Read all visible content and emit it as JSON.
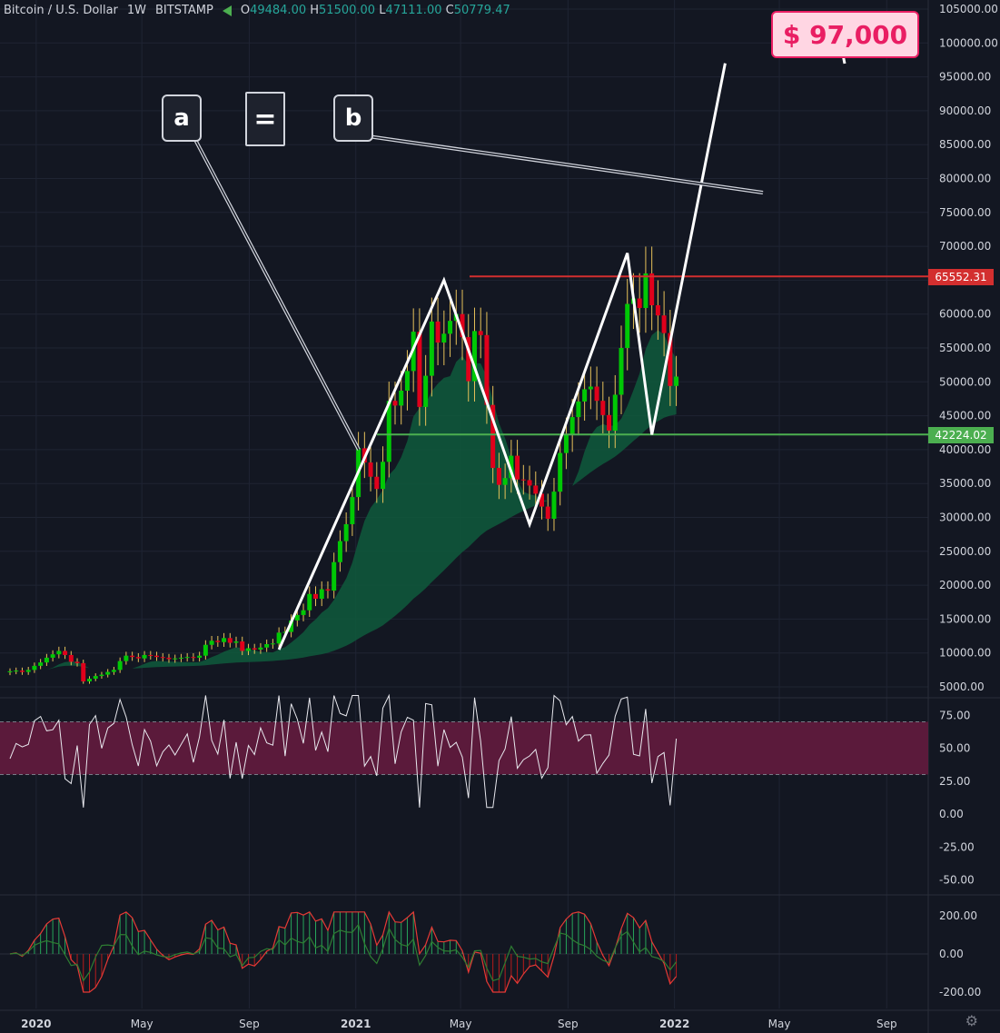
{
  "header": {
    "symbol": "Bitcoin / U.S. Dollar",
    "interval": "1W",
    "exchange": "BITSTAMP",
    "o_label": "O",
    "o": "49484.00",
    "h_label": "H",
    "h": "51500.00",
    "l_label": "L",
    "l": "47111.00",
    "c_label": "C",
    "c": "50779.47"
  },
  "annotations": {
    "a": "a",
    "eq": "=",
    "b": "b",
    "target": "$ 97,000",
    "resistance_tag": "65552.31",
    "support_tag": "42224.02"
  },
  "colors": {
    "background": "#131722",
    "up": "#00c805",
    "down": "#e0001b",
    "resistance": "#d32f2f",
    "support": "#4caf50",
    "target": "#e91e63",
    "fill": "#0f5a3c",
    "rsi_band": "#5b1a3b"
  },
  "chart_data": [
    {
      "type": "candlestick",
      "title": "",
      "ylim": [
        3000,
        106000
      ],
      "y_ticks": [
        "105000.00",
        "100000.00",
        "95000.00",
        "90000.00",
        "85000.00",
        "80000.00",
        "75000.00",
        "70000.00",
        "65000.00",
        "60000.00",
        "55000.00",
        "50000.00",
        "45000.00",
        "40000.00",
        "35000.00",
        "30000.00",
        "25000.00",
        "20000.00",
        "15000.00",
        "10000.00",
        "5000.00"
      ],
      "x_labels": [
        "2020",
        "May",
        "Sep",
        "2021",
        "May",
        "Sep",
        "2022",
        "May",
        "Sep"
      ],
      "resistance": 65552.31,
      "support": 42224.02,
      "projection_target": 97000,
      "pattern_points": [
        {
          "date": "2020-10-05",
          "price": 10500
        },
        {
          "date": "2021-04-12",
          "price": 65000
        },
        {
          "date": "2021-07-19",
          "price": 29000
        },
        {
          "date": "2021-11-08",
          "price": 69000
        },
        {
          "date": "2021-12-06",
          "price": 42224
        },
        {
          "date": "2022-02-28",
          "price": 97000
        }
      ],
      "weekly_close": [
        7300,
        7400,
        7200,
        7500,
        8100,
        8600,
        9300,
        9800,
        10300,
        9700,
        8700,
        8500,
        5800,
        6200,
        6600,
        6800,
        7200,
        7500,
        8800,
        9600,
        9400,
        9200,
        9700,
        9600,
        9400,
        9300,
        9100,
        9200,
        9300,
        9400,
        9300,
        9600,
        11200,
        11800,
        11600,
        12200,
        11500,
        11700,
        10300,
        10700,
        10500,
        10800,
        11300,
        11400,
        13000,
        13100,
        14800,
        15600,
        16300,
        18700,
        18000,
        19400,
        19200,
        23400,
        26500,
        29000,
        33000,
        40200,
        38100,
        36000,
        34200,
        38200,
        47200,
        46500,
        48700,
        51600,
        57400,
        46300,
        50900,
        58900,
        55800,
        57100,
        59000,
        60000,
        56600,
        50100,
        57500,
        56900,
        46600,
        37300,
        34800,
        35800,
        39100,
        35600,
        35500,
        34700,
        33500,
        31600,
        29800,
        33800,
        39500,
        42200,
        44800,
        47100,
        48900,
        49300,
        47200,
        45100,
        42800,
        48100,
        55000,
        61500,
        62300,
        60900,
        66000,
        61300,
        59800,
        57200,
        49400,
        50779
      ]
    },
    {
      "type": "line",
      "title": "",
      "ylim": [
        -55,
        80
      ],
      "y_ticks": [
        "75.00",
        "50.00",
        "25.00",
        "0.00",
        "-25.00",
        "-50.00"
      ],
      "band": [
        30,
        70
      ]
    },
    {
      "type": "bar",
      "title": "",
      "ylim": [
        -230,
        230
      ],
      "y_ticks": [
        "200.00",
        "0.00",
        "-200.00"
      ]
    }
  ]
}
